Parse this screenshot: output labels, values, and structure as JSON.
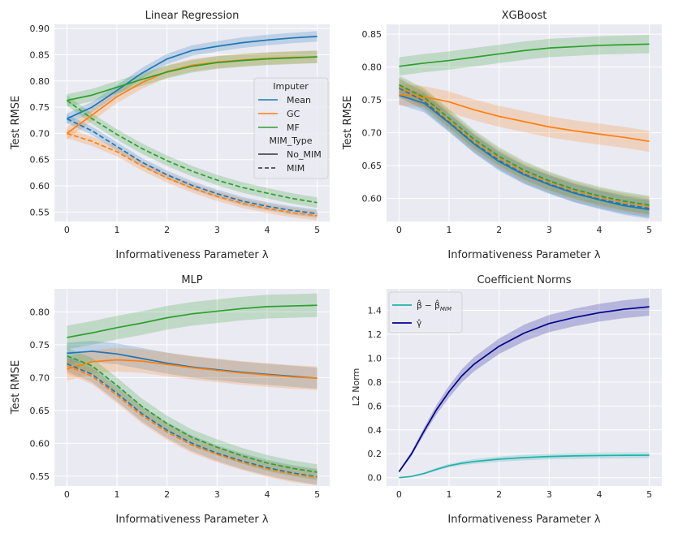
{
  "colors": {
    "background": "#eaeaf2",
    "grid": "#ffffff",
    "mean": "#1f77b4",
    "gc": "#ff7f0e",
    "mf": "#2ca02c",
    "beta": "#20b2aa",
    "gamma": "#00008b",
    "text": "#262626"
  },
  "chart_data": [
    {
      "type": "line",
      "title": "Linear Regression",
      "xlabel": "Informativeness Parameter λ",
      "ylabel": "Test RMSE",
      "xlim": [
        -0.25,
        5.25
      ],
      "ylim": [
        0.532,
        0.908
      ],
      "xticks": [
        0,
        1,
        2,
        3,
        4,
        5
      ],
      "xtick_labels": [
        "0",
        "1",
        "2",
        "3",
        "4",
        "5"
      ],
      "yticks": [
        0.55,
        0.6,
        0.65,
        0.7,
        0.75,
        0.8,
        0.85,
        0.9
      ],
      "ytick_labels": [
        "0.55",
        "0.60",
        "0.65",
        "0.70",
        "0.75",
        "0.80",
        "0.85",
        "0.90"
      ],
      "x": [
        0,
        0.5,
        1,
        1.5,
        2,
        2.5,
        3,
        3.5,
        4,
        4.5,
        5
      ],
      "series": [
        {
          "name": "Mean",
          "imputer": "Mean",
          "mim_type": "No_MIM",
          "band": 0.01,
          "values": [
            0.728,
            0.75,
            0.782,
            0.815,
            0.842,
            0.858,
            0.866,
            0.873,
            0.878,
            0.882,
            0.885
          ]
        },
        {
          "name": "GC",
          "imputer": "GC",
          "mim_type": "No_MIM",
          "band": 0.012,
          "values": [
            0.7,
            0.735,
            0.77,
            0.797,
            0.818,
            0.83,
            0.836,
            0.84,
            0.843,
            0.845,
            0.846
          ]
        },
        {
          "name": "MF",
          "imputer": "MF",
          "mim_type": "No_MIM",
          "band": 0.012,
          "values": [
            0.763,
            0.773,
            0.788,
            0.803,
            0.817,
            0.828,
            0.835,
            0.839,
            0.842,
            0.844,
            0.846
          ]
        },
        {
          "name": "Mean",
          "imputer": "Mean",
          "mim_type": "MIM",
          "band": 0.008,
          "values": [
            0.728,
            0.705,
            0.675,
            0.645,
            0.621,
            0.601,
            0.585,
            0.571,
            0.561,
            0.553,
            0.547
          ]
        },
        {
          "name": "GC",
          "imputer": "GC",
          "mim_type": "MIM",
          "band": 0.009,
          "values": [
            0.7,
            0.685,
            0.665,
            0.638,
            0.615,
            0.596,
            0.58,
            0.567,
            0.557,
            0.549,
            0.543
          ]
        },
        {
          "name": "MF",
          "imputer": "MF",
          "mim_type": "MIM",
          "band": 0.01,
          "values": [
            0.763,
            0.728,
            0.698,
            0.671,
            0.648,
            0.628,
            0.611,
            0.597,
            0.586,
            0.576,
            0.568
          ]
        }
      ],
      "legend": {
        "position": "center-right",
        "title": "Imputer",
        "entries": [
          "Mean",
          "GC",
          "MF"
        ],
        "subtitle": "MIM_Type",
        "style_entries": [
          "No_MIM",
          "MIM"
        ]
      }
    },
    {
      "type": "line",
      "title": "XGBoost",
      "xlabel": "Informativeness Parameter λ",
      "ylabel": "Test RMSE",
      "xlim": [
        -0.25,
        5.25
      ],
      "ylim": [
        0.565,
        0.865
      ],
      "xticks": [
        0,
        1,
        2,
        3,
        4,
        5
      ],
      "xtick_labels": [
        "0",
        "1",
        "2",
        "3",
        "4",
        "5"
      ],
      "yticks": [
        0.6,
        0.65,
        0.7,
        0.75,
        0.8,
        0.85
      ],
      "ytick_labels": [
        "0.60",
        "0.65",
        "0.70",
        "0.75",
        "0.80",
        "0.85"
      ],
      "x": [
        0,
        0.5,
        1,
        1.5,
        2,
        2.5,
        3,
        3.5,
        4,
        4.5,
        5
      ],
      "series": [
        {
          "name": "Mean",
          "imputer": "Mean",
          "mim_type": "No_MIM",
          "band": 0.014,
          "values": [
            0.757,
            0.745,
            0.715,
            0.683,
            0.656,
            0.636,
            0.621,
            0.608,
            0.598,
            0.589,
            0.583
          ]
        },
        {
          "name": "GC",
          "imputer": "GC",
          "mim_type": "No_MIM",
          "band": 0.016,
          "values": [
            0.758,
            0.755,
            0.747,
            0.735,
            0.725,
            0.717,
            0.709,
            0.703,
            0.698,
            0.693,
            0.687
          ]
        },
        {
          "name": "MF",
          "imputer": "MF",
          "mim_type": "No_MIM",
          "band": 0.014,
          "values": [
            0.801,
            0.806,
            0.81,
            0.815,
            0.82,
            0.825,
            0.829,
            0.831,
            0.833,
            0.834,
            0.835
          ]
        },
        {
          "name": "Mean",
          "imputer": "Mean",
          "mim_type": "MIM",
          "band": 0.014,
          "values": [
            0.768,
            0.748,
            0.716,
            0.684,
            0.658,
            0.637,
            0.622,
            0.609,
            0.599,
            0.591,
            0.585
          ]
        },
        {
          "name": "GC",
          "imputer": "GC",
          "mim_type": "MIM",
          "band": 0.014,
          "values": [
            0.77,
            0.751,
            0.719,
            0.687,
            0.661,
            0.64,
            0.625,
            0.612,
            0.602,
            0.594,
            0.588
          ]
        },
        {
          "name": "MF",
          "imputer": "MF",
          "mim_type": "MIM",
          "band": 0.014,
          "values": [
            0.773,
            0.754,
            0.722,
            0.69,
            0.664,
            0.643,
            0.627,
            0.614,
            0.604,
            0.596,
            0.59
          ]
        }
      ]
    },
    {
      "type": "line",
      "title": "MLP",
      "xlabel": "Informativeness Parameter λ",
      "ylabel": "Test RMSE",
      "xlim": [
        -0.25,
        5.25
      ],
      "ylim": [
        0.535,
        0.835
      ],
      "xticks": [
        0,
        1,
        2,
        3,
        4,
        5
      ],
      "xtick_labels": [
        "0",
        "1",
        "2",
        "3",
        "4",
        "5"
      ],
      "yticks": [
        0.55,
        0.6,
        0.65,
        0.7,
        0.75,
        0.8
      ],
      "ytick_labels": [
        "0.55",
        "0.60",
        "0.65",
        "0.70",
        "0.75",
        "0.80"
      ],
      "x": [
        0,
        0.5,
        1,
        1.5,
        2,
        2.5,
        3,
        3.5,
        4,
        4.5,
        5
      ],
      "series": [
        {
          "name": "Mean",
          "imputer": "Mean",
          "mim_type": "No_MIM",
          "band": 0.016,
          "values": [
            0.737,
            0.74,
            0.736,
            0.729,
            0.722,
            0.716,
            0.712,
            0.708,
            0.705,
            0.702,
            0.699
          ]
        },
        {
          "name": "GC",
          "imputer": "GC",
          "mim_type": "No_MIM",
          "band": 0.018,
          "values": [
            0.713,
            0.724,
            0.727,
            0.725,
            0.72,
            0.715,
            0.711,
            0.707,
            0.704,
            0.701,
            0.699
          ]
        },
        {
          "name": "MF",
          "imputer": "MF",
          "mim_type": "No_MIM",
          "band": 0.018,
          "values": [
            0.761,
            0.768,
            0.776,
            0.783,
            0.791,
            0.797,
            0.801,
            0.805,
            0.808,
            0.809,
            0.81
          ]
        },
        {
          "name": "Mean",
          "imputer": "Mean",
          "mim_type": "MIM",
          "band": 0.012,
          "values": [
            0.721,
            0.705,
            0.676,
            0.645,
            0.62,
            0.6,
            0.585,
            0.573,
            0.563,
            0.555,
            0.549
          ]
        },
        {
          "name": "GC",
          "imputer": "GC",
          "mim_type": "MIM",
          "band": 0.012,
          "values": [
            0.718,
            0.702,
            0.673,
            0.642,
            0.617,
            0.597,
            0.583,
            0.571,
            0.561,
            0.553,
            0.548
          ]
        },
        {
          "name": "MF",
          "imputer": "MF",
          "mim_type": "MIM",
          "band": 0.012,
          "values": [
            0.733,
            0.718,
            0.688,
            0.656,
            0.63,
            0.609,
            0.594,
            0.581,
            0.57,
            0.562,
            0.556
          ]
        }
      ]
    },
    {
      "type": "line",
      "title": "Coefficient Norms",
      "xlabel": "Informativeness Parameter λ",
      "ylabel": "L2 Norm",
      "xlim": [
        -0.25,
        5.25
      ],
      "ylim": [
        -0.07,
        1.58
      ],
      "xticks": [
        0,
        1,
        2,
        3,
        4,
        5
      ],
      "xtick_labels": [
        "0",
        "1",
        "2",
        "3",
        "4",
        "5"
      ],
      "yticks": [
        0,
        0.2,
        0.4,
        0.6,
        0.8,
        1.0,
        1.2,
        1.4
      ],
      "ytick_labels": [
        "0.0",
        "0.2",
        "0.4",
        "0.6",
        "0.8",
        "1.0",
        "1.2",
        "1.4"
      ],
      "x": [
        0,
        0.25,
        0.5,
        0.75,
        1,
        1.25,
        1.5,
        2,
        2.5,
        3,
        3.5,
        4,
        4.5,
        5
      ],
      "series": [
        {
          "name": "β̂ − β̂MIM",
          "key": "beta",
          "bands": [
            0.003,
            0.005,
            0.008,
            0.012,
            0.015,
            0.017,
            0.02,
            0.022,
            0.023,
            0.024,
            0.025,
            0.025,
            0.025,
            0.025
          ],
          "values": [
            0.0,
            0.01,
            0.035,
            0.07,
            0.1,
            0.12,
            0.135,
            0.155,
            0.168,
            0.177,
            0.182,
            0.185,
            0.187,
            0.188
          ]
        },
        {
          "name": "γ̂",
          "key": "gamma",
          "bands": [
            0.01,
            0.02,
            0.03,
            0.04,
            0.05,
            0.055,
            0.06,
            0.065,
            0.07,
            0.072,
            0.073,
            0.074,
            0.075,
            0.075
          ],
          "values": [
            0.05,
            0.2,
            0.39,
            0.57,
            0.72,
            0.85,
            0.95,
            1.1,
            1.21,
            1.29,
            1.34,
            1.38,
            1.41,
            1.43
          ]
        }
      ],
      "legend": {
        "position": "top-left",
        "entries": [
          "β̂ − β̂MIM",
          "γ̂"
        ]
      }
    }
  ]
}
